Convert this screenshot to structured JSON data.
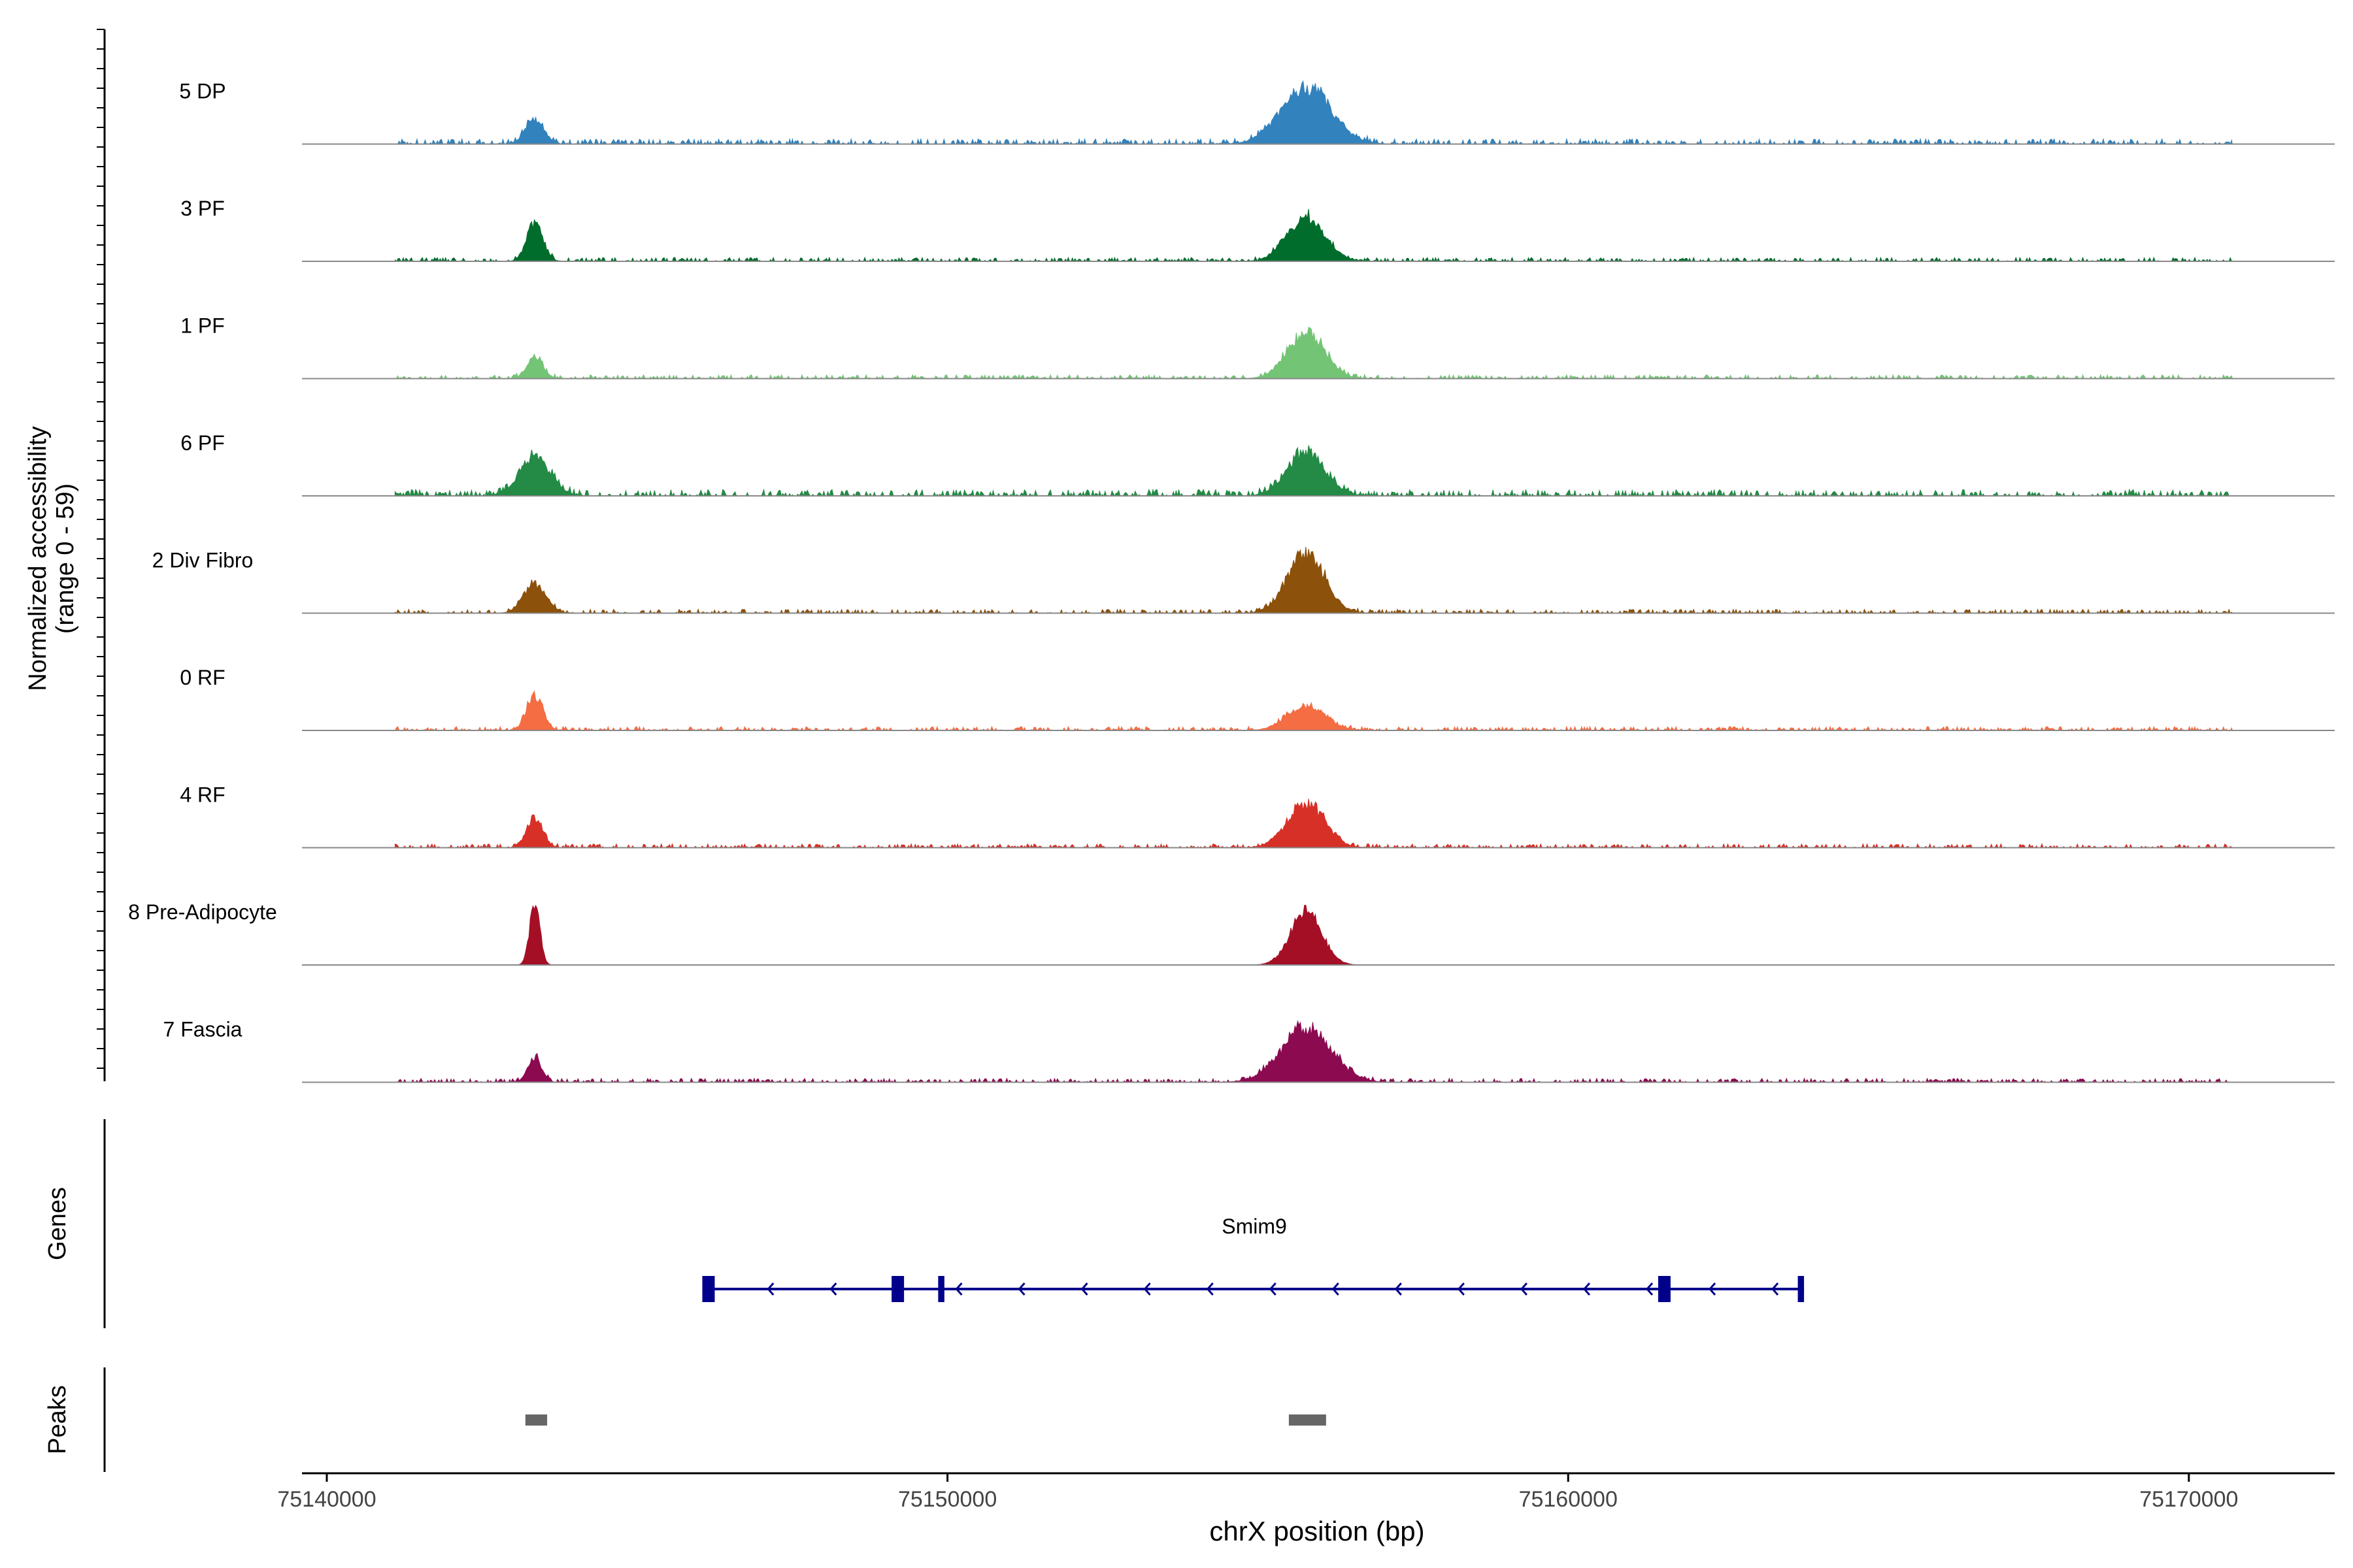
{
  "chart_data": {
    "type": "area",
    "title": "",
    "xlabel": "chrX position (bp)",
    "ylabel": "Normalized accessibility",
    "ylabel_range": "(range 0 - 59)",
    "ylim": [
      0,
      59
    ],
    "xlim": [
      75139600,
      75172350
    ],
    "x_ticks": [
      75140000,
      75150000,
      75160000,
      75170000
    ],
    "x_tick_labels": [
      "75140000",
      "75150000",
      "75160000",
      "75170000"
    ],
    "track_start": 75141100,
    "track_end": 75170700,
    "tracks": [
      {
        "name": "5 DP",
        "color": "#3182bd",
        "peaks": [
          [
            75143350,
            22,
            150
          ],
          [
            75155780,
            51,
            400
          ]
        ],
        "noise": 4
      },
      {
        "name": "3 PF",
        "color": "#006d2c",
        "peaks": [
          [
            75143350,
            34,
            130
          ],
          [
            75155780,
            39,
            300
          ]
        ],
        "noise": 3
      },
      {
        "name": "1 PF",
        "color": "#74c476",
        "peaks": [
          [
            75143350,
            18,
            130
          ],
          [
            75155780,
            41,
            300
          ]
        ],
        "noise": 3
      },
      {
        "name": "6 PF",
        "color": "#238b45",
        "peaks": [
          [
            75143350,
            34,
            250
          ],
          [
            75155780,
            38,
            300
          ]
        ],
        "noise": 5
      },
      {
        "name": "2 Div Fibro",
        "color": "#8c510a",
        "peaks": [
          [
            75143350,
            26,
            180
          ],
          [
            75155780,
            53,
            300
          ]
        ],
        "noise": 3
      },
      {
        "name": "0 RF",
        "color": "#f46d43",
        "peaks": [
          [
            75143350,
            31,
            130
          ],
          [
            75155780,
            22,
            300
          ]
        ],
        "noise": 3
      },
      {
        "name": "4 RF",
        "color": "#d73027",
        "peaks": [
          [
            75143350,
            27,
            130
          ],
          [
            75155780,
            39,
            300
          ]
        ],
        "noise": 3
      },
      {
        "name": "8 Pre-Adipocyte",
        "color": "#a50f26",
        "peaks": [
          [
            75143350,
            57,
            80
          ],
          [
            75155780,
            48,
            250
          ]
        ],
        "noise": 0
      },
      {
        "name": "7 Fascia",
        "color": "#8b0a50",
        "peaks": [
          [
            75143350,
            21,
            110
          ],
          [
            75155780,
            49,
            400
          ]
        ],
        "noise": 3
      }
    ],
    "genes": {
      "label": "Genes",
      "gene_name": "Smim9",
      "start": 75146100,
      "end": 75163800,
      "strand": "-",
      "exons": [
        [
          75146050,
          75146250
        ],
        [
          75149100,
          75149300
        ],
        [
          75149850,
          75149950
        ],
        [
          75161450,
          75161650
        ],
        [
          75163700,
          75163800
        ]
      ],
      "color": "#00008b"
    },
    "peaks_track": {
      "label": "Peaks",
      "regions": [
        [
          75143200,
          75143550
        ],
        [
          75155500,
          75156100
        ]
      ],
      "color": "#666666"
    }
  }
}
